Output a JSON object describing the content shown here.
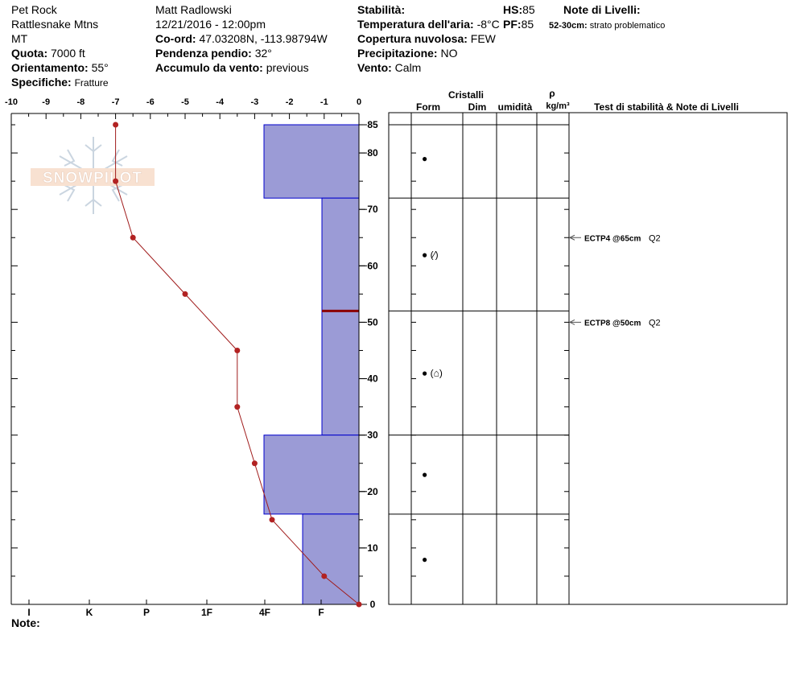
{
  "header": {
    "location": "Pet Rock",
    "range": "Rattlesnake Mtns",
    "state": "MT",
    "elevation_label": "Quota:",
    "elevation_value": "7000 ft",
    "aspect_label": "Orientamento:",
    "aspect_value": "55°",
    "specifics_label": "Specifiche:",
    "specifics_value": "Fratture",
    "observer": "Matt Radlowski",
    "datetime": "12/21/2016 - 12:00pm",
    "coord_label": "Co-ord:",
    "coord_value": "47.03208N, -113.98794W",
    "slope_label": "Pendenza pendio:",
    "slope_value": "32°",
    "wind_loading_label": "Accumulo da vento:",
    "wind_loading_value": "previous",
    "stability_label": "Stabilità:",
    "air_temp_label": "Temperatura dell'aria:",
    "air_temp_value": "-8°C",
    "cloud_label": "Copertura nuvolosa:",
    "cloud_value": "FEW",
    "precip_label": "Precipitazione:",
    "precip_value": "NO",
    "wind_label": "Vento:",
    "wind_value": "Calm",
    "hs_label": "HS:",
    "hs_value": "85",
    "pf_label": "PF:",
    "pf_value": "85",
    "layer_notes_label": "Note di Livelli:",
    "layer_note_range": "52-30cm:",
    "layer_note_text": "strato problematico"
  },
  "columns": {
    "crystals": "Cristalli",
    "form": "Form",
    "size": "Dim",
    "moisture": "umidità",
    "rho": "ρ",
    "density_unit": "kg/m³",
    "tests": "Test di stabilità & Note di Livelli"
  },
  "notes_label": "Note:",
  "logo_text": "SNOWPILOT",
  "chart_data": {
    "type": "line",
    "temperature_axis": {
      "ticks": [
        -10,
        -9,
        -8,
        -7,
        -6,
        -5,
        -4,
        -3,
        -2,
        -1,
        0
      ],
      "range": [
        -10,
        0
      ],
      "position": "top"
    },
    "height_axis": {
      "ticks": [
        0,
        10,
        20,
        30,
        40,
        50,
        60,
        70,
        80,
        85
      ],
      "range": [
        0,
        85
      ],
      "unit": "cm"
    },
    "hardness_axis": {
      "labels": [
        "I",
        "K",
        "P",
        "1F",
        "4F",
        "F"
      ],
      "position": "bottom"
    },
    "temperature_profile": {
      "height": [
        85,
        75,
        65,
        55,
        45,
        35,
        25,
        15,
        5,
        0
      ],
      "temperature": [
        -7.0,
        -7.0,
        -6.5,
        -5.0,
        -3.5,
        -3.5,
        -3.0,
        -2.5,
        -1.0,
        0.0
      ]
    },
    "hardness_layers": [
      {
        "top": 85,
        "bottom": 72,
        "hardness": "4F"
      },
      {
        "top": 72,
        "bottom": 30,
        "hardness": "F"
      },
      {
        "top": 30,
        "bottom": 16,
        "hardness": "4F"
      },
      {
        "top": 16,
        "bottom": 0,
        "hardness": "F+"
      }
    ],
    "problem_layer_height": 52,
    "layer_boundaries": [
      85,
      72,
      52,
      30,
      16
    ],
    "crystal_forms": [
      {
        "height": 79,
        "symbol": "●"
      },
      {
        "height": 62,
        "symbol": "● (⁄)"
      },
      {
        "height": 41,
        "symbol": "● (⌂)"
      },
      {
        "height": 23,
        "symbol": "●"
      },
      {
        "height": 8,
        "symbol": "●"
      }
    ],
    "stability_tests": [
      {
        "height": 65,
        "label": "ECTP4 @65cm",
        "quality": "Q2"
      },
      {
        "height": 50,
        "label": "ECTP8 @50cm",
        "quality": "Q2"
      }
    ]
  }
}
